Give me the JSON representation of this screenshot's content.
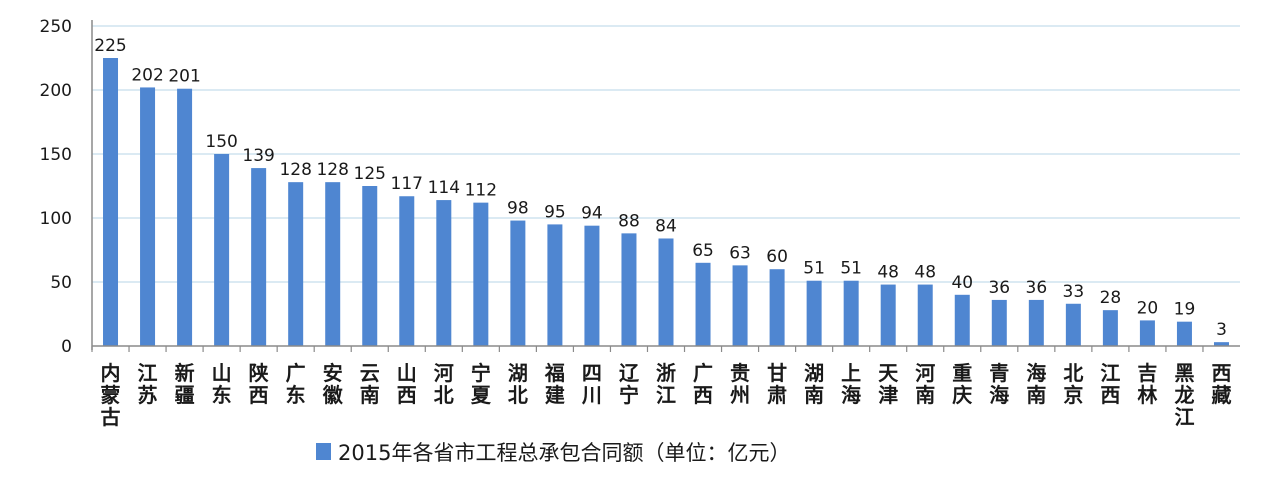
{
  "chart_data": {
    "type": "bar",
    "categories": [
      "内蒙古",
      "江苏",
      "新疆",
      "山东",
      "陕西",
      "广东",
      "安徽",
      "云南",
      "山西",
      "河北",
      "宁夏",
      "湖北",
      "福建",
      "四川",
      "辽宁",
      "浙江",
      "广西",
      "贵州",
      "甘肃",
      "湖南",
      "上海",
      "天津",
      "河南",
      "重庆",
      "青海",
      "海南",
      "北京",
      "江西",
      "吉林",
      "黑龙江",
      "西藏"
    ],
    "series": [
      {
        "name": "2015年各省市工程总承包合同额（单位：亿元）",
        "values": [
          225,
          202,
          201,
          150,
          139,
          128,
          128,
          125,
          117,
          114,
          112,
          98,
          95,
          94,
          88,
          84,
          65,
          63,
          60,
          51,
          51,
          48,
          48,
          40,
          36,
          36,
          33,
          28,
          20,
          19,
          3
        ]
      }
    ],
    "yticks": [
      "0",
      "50",
      "100",
      "150",
      "200",
      "250"
    ],
    "ylim": [
      0,
      250
    ],
    "grid": true,
    "legend_position": "bottom",
    "colors": {
      "bar": "#4f86d1",
      "grid": "#cfe3ef",
      "axis": "#8a8a8a"
    }
  }
}
